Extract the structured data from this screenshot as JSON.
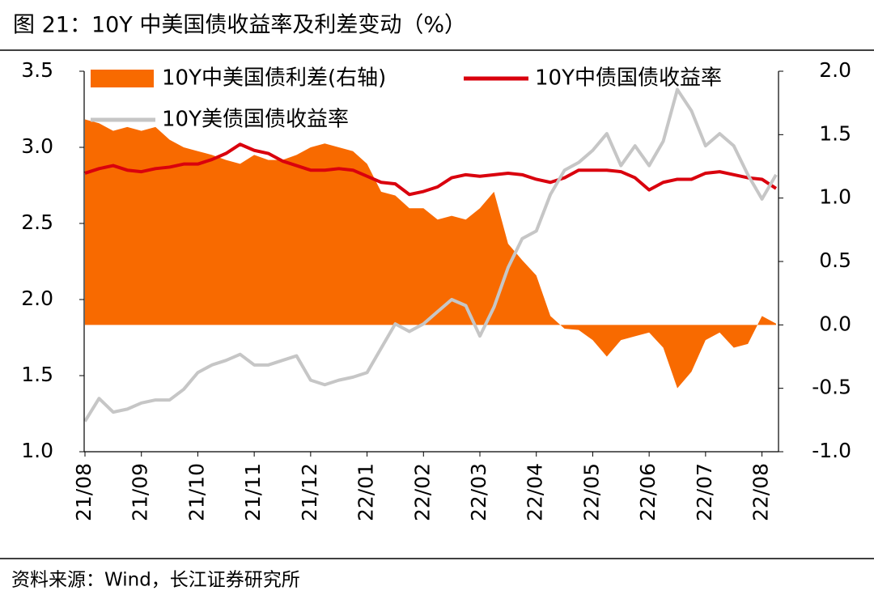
{
  "chart_data": {
    "type": "combo",
    "title": "图 21：10Y 中美国债收益率及利差变动（%）",
    "source": "资料来源：Wind，长江证券研究所",
    "categories": [
      "21/08",
      null,
      null,
      null,
      "21/09",
      null,
      null,
      null,
      "21/10",
      null,
      null,
      null,
      "21/11",
      null,
      null,
      null,
      "21/12",
      null,
      null,
      null,
      "22/01",
      null,
      null,
      null,
      "22/02",
      null,
      null,
      null,
      "22/03",
      null,
      null,
      null,
      "22/04",
      null,
      null,
      null,
      "22/05",
      null,
      null,
      null,
      "22/06",
      null,
      null,
      null,
      "22/07",
      null,
      null,
      null,
      "22/08",
      null
    ],
    "series": [
      {
        "name": "10Y中美国债利差(右轴)",
        "type": "area",
        "axis": "y2",
        "color": "#f86a00",
        "values": [
          1.62,
          1.59,
          1.53,
          1.56,
          1.53,
          1.56,
          1.46,
          1.4,
          1.37,
          1.34,
          1.3,
          1.27,
          1.34,
          1.3,
          1.3,
          1.34,
          1.4,
          1.43,
          1.4,
          1.37,
          1.27,
          1.05,
          1.02,
          0.92,
          0.92,
          0.83,
          0.86,
          0.83,
          0.92,
          1.05,
          0.64,
          0.51,
          0.39,
          0.07,
          -0.03,
          -0.04,
          -0.12,
          -0.25,
          -0.12,
          -0.09,
          -0.06,
          -0.18,
          -0.5,
          -0.37,
          -0.12,
          -0.06,
          -0.18,
          -0.15,
          0.07,
          0.01
        ]
      },
      {
        "name": "10Y中债国债收益率",
        "type": "line",
        "color": "#d9000d",
        "values": [
          2.83,
          2.86,
          2.88,
          2.85,
          2.84,
          2.86,
          2.87,
          2.89,
          2.89,
          2.92,
          2.96,
          3.02,
          2.98,
          2.96,
          2.91,
          2.88,
          2.85,
          2.85,
          2.86,
          2.85,
          2.81,
          2.77,
          2.76,
          2.69,
          2.71,
          2.74,
          2.8,
          2.82,
          2.81,
          2.82,
          2.83,
          2.82,
          2.79,
          2.77,
          2.8,
          2.85,
          2.85,
          2.85,
          2.84,
          2.8,
          2.72,
          2.77,
          2.79,
          2.79,
          2.83,
          2.84,
          2.82,
          2.8,
          2.79,
          2.73
        ]
      },
      {
        "name": "10Y美债国债收益率",
        "type": "line",
        "color": "#c6c6c6",
        "values": [
          1.2,
          1.35,
          1.26,
          1.28,
          1.32,
          1.34,
          1.34,
          1.41,
          1.52,
          1.57,
          1.6,
          1.64,
          1.57,
          1.57,
          1.6,
          1.63,
          1.47,
          1.44,
          1.47,
          1.49,
          1.52,
          1.68,
          1.84,
          1.79,
          1.84,
          1.92,
          2.0,
          1.96,
          1.76,
          1.95,
          2.21,
          2.4,
          2.45,
          2.69,
          2.85,
          2.9,
          2.98,
          3.09,
          2.88,
          3.01,
          2.88,
          3.04,
          3.38,
          3.24,
          3.01,
          3.09,
          3.01,
          2.82,
          2.66,
          2.82
        ]
      }
    ],
    "ylim": [
      1,
      3.5
    ],
    "yticks": [
      {
        "value": 1,
        "label": "1.0"
      },
      1.5,
      {
        "value": 2,
        "label": "2.0"
      },
      2.5,
      {
        "value": 3,
        "label": "3.0"
      },
      3.5
    ],
    "y2lim": [
      -1,
      2
    ],
    "y2ticks": [
      {
        "value": -1,
        "label": "-1.0"
      },
      -0.5,
      {
        "value": 0,
        "label": "0.0"
      },
      0.5,
      {
        "value": 1,
        "label": "1.0"
      },
      1.5,
      {
        "value": 2,
        "label": "2.0"
      }
    ],
    "grid": false,
    "legend": "top-left"
  }
}
